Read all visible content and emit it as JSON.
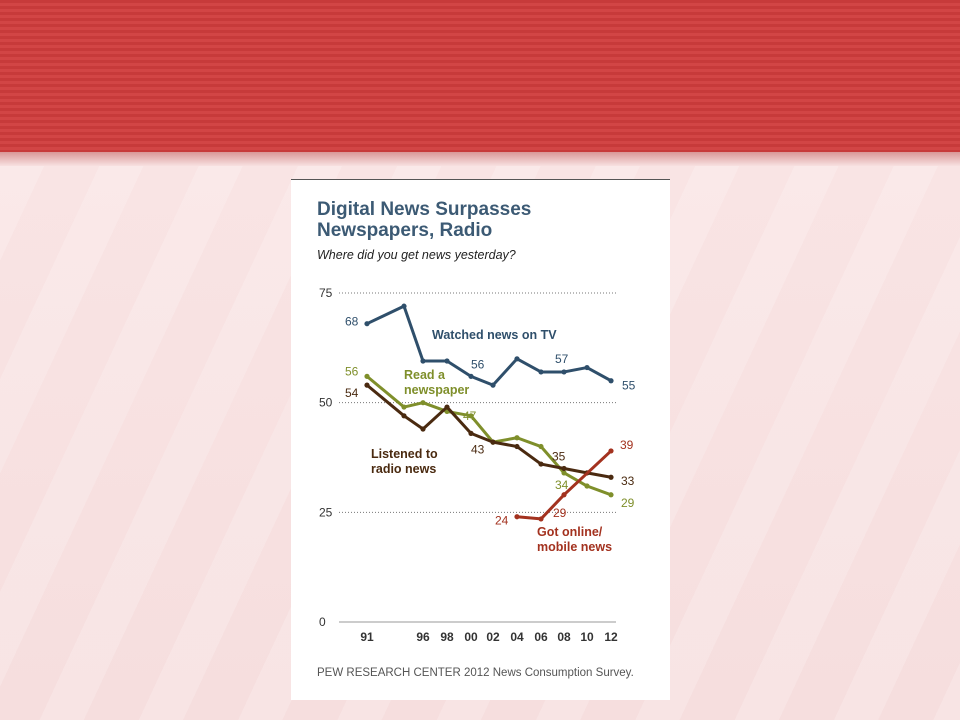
{
  "colors": {
    "tv": "#2f4f6b",
    "newspaper": "#7f8f2b",
    "radio": "#4a2a10",
    "online": "#a3321f",
    "title": "#3c5a74"
  },
  "chart_data": {
    "type": "line",
    "title": "Digital News Surpasses Newspapers, Radio",
    "subtitle": "Where did you get news yesterday?",
    "source": "PEW RESEARCH CENTER 2012 News Consumption Survey.",
    "x": [
      1991,
      1994,
      1996,
      1998,
      2000,
      2002,
      2004,
      2006,
      2008,
      2010,
      2012
    ],
    "x_tick_labels": [
      "91",
      "96",
      "98",
      "00",
      "02",
      "04",
      "06",
      "08",
      "10",
      "12"
    ],
    "x_tick_years": [
      1991,
      1996,
      1998,
      2000,
      2002,
      2004,
      2006,
      2008,
      2010,
      2012
    ],
    "ylim": [
      0,
      75
    ],
    "y_ticks": [
      0,
      25,
      50,
      75
    ],
    "grid": "dotted horizontal at y ticks",
    "series": [
      {
        "key": "tv",
        "name": "Watched news on TV",
        "x": [
          1991,
          1994,
          1996,
          1998,
          2000,
          2002,
          2004,
          2006,
          2008,
          2010,
          2012
        ],
        "values": [
          68,
          72,
          59.5,
          59.5,
          56,
          54,
          60,
          57,
          57,
          58,
          55
        ],
        "labels": [
          {
            "x": 1991,
            "y": 68,
            "text": "68"
          },
          {
            "x": 2000,
            "y": 56,
            "text": "56"
          },
          {
            "x": 2008,
            "y": 57,
            "text": "57"
          },
          {
            "x": 2012,
            "y": 55,
            "text": "55"
          }
        ]
      },
      {
        "key": "newspaper",
        "name": "Read a newspaper",
        "x": [
          1991,
          1994,
          1996,
          1998,
          2000,
          2002,
          2004,
          2006,
          2008,
          2010,
          2012
        ],
        "values": [
          56,
          49,
          50,
          48,
          47,
          41,
          42,
          40,
          34,
          31,
          29
        ],
        "labels": [
          {
            "x": 1991,
            "y": 56,
            "text": "56"
          },
          {
            "x": 2000,
            "y": 47,
            "text": "47"
          },
          {
            "x": 2008,
            "y": 34,
            "text": "34"
          },
          {
            "x": 2012,
            "y": 29,
            "text": "29"
          }
        ]
      },
      {
        "key": "radio",
        "name": "Listened to radio news",
        "x": [
          1991,
          1994,
          1996,
          1998,
          2000,
          2002,
          2004,
          2006,
          2008,
          2010,
          2012
        ],
        "values": [
          54,
          47,
          44,
          49,
          43,
          41,
          40,
          36,
          35,
          34,
          33
        ],
        "labels": [
          {
            "x": 1991,
            "y": 54,
            "text": "54"
          },
          {
            "x": 2000,
            "y": 43,
            "text": "43"
          },
          {
            "x": 2008,
            "y": 35,
            "text": "35"
          },
          {
            "x": 2012,
            "y": 33,
            "text": "33"
          }
        ]
      },
      {
        "key": "online",
        "name": "Got online/ mobile news",
        "x": [
          2004,
          2006,
          2008,
          2012
        ],
        "values": [
          24,
          23.5,
          29,
          39
        ],
        "labels": [
          {
            "x": 2004,
            "y": 24,
            "text": "24"
          },
          {
            "x": 2008,
            "y": 29,
            "text": "29"
          },
          {
            "x": 2012,
            "y": 39,
            "text": "39"
          }
        ]
      }
    ],
    "annotations": [
      {
        "series": "tv",
        "lines": [
          "Watched news on TV"
        ]
      },
      {
        "series": "newspaper",
        "lines": [
          "Read a",
          "newspaper"
        ]
      },
      {
        "series": "radio",
        "lines": [
          "Listened to",
          "radio news"
        ]
      },
      {
        "series": "online",
        "lines": [
          "Got online/",
          "mobile news"
        ]
      }
    ]
  }
}
